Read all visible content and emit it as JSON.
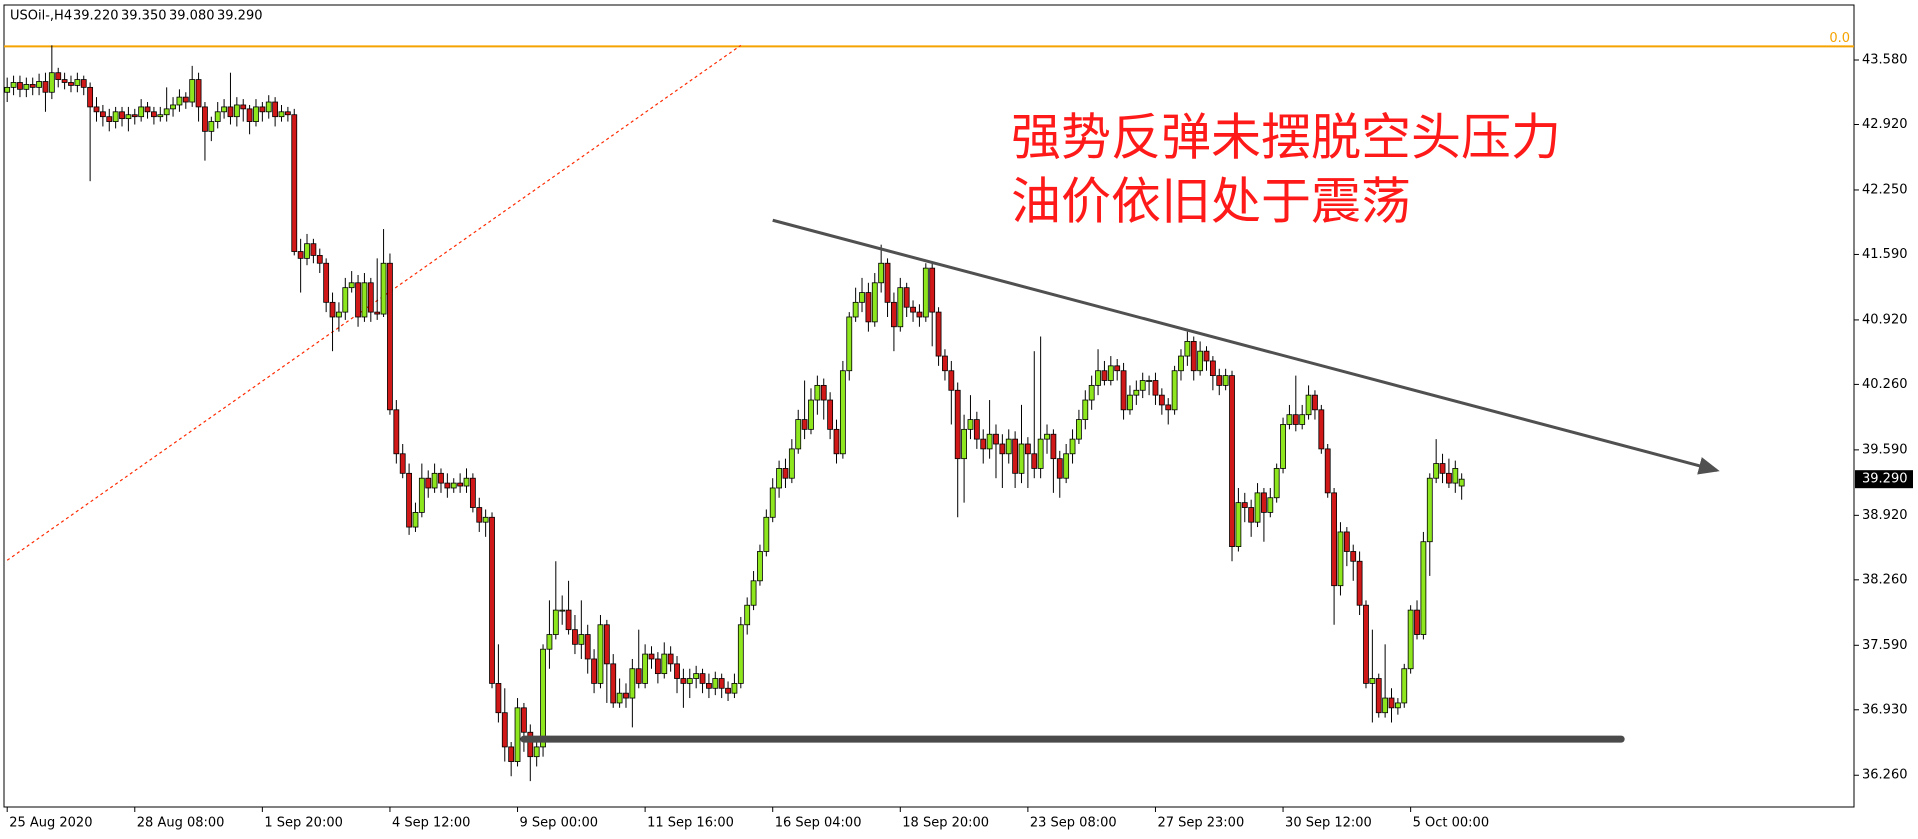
{
  "chart_data": {
    "type": "candlestick",
    "symbol": "USOil-,H4",
    "header_values": [
      "39.220",
      "39.350",
      "39.080",
      "39.290"
    ],
    "annotation": [
      "强势反弹未摆脱空头压力",
      "油价依旧处于震荡"
    ],
    "annotation_color": "#ff1a1a",
    "up_color": "#8ee61e",
    "down_color": "#d01818",
    "ylim": [
      35.935,
      44.143
    ],
    "yticks": [
      {
        "value": 43.58,
        "label": "43.580"
      },
      {
        "value": 42.92,
        "label": "42.920"
      },
      {
        "value": 42.25,
        "label": "42.250"
      },
      {
        "value": 41.59,
        "label": "41.590"
      },
      {
        "value": 40.92,
        "label": "40.920"
      },
      {
        "value": 40.26,
        "label": "40.260"
      },
      {
        "value": 39.59,
        "label": "39.590"
      },
      {
        "value": 38.92,
        "label": "38.920"
      },
      {
        "value": 38.26,
        "label": "38.260"
      },
      {
        "value": 37.59,
        "label": "37.590"
      },
      {
        "value": 36.93,
        "label": "36.930"
      },
      {
        "value": 36.26,
        "label": "36.260"
      }
    ],
    "xlim": [
      -0.5,
      289.5
    ],
    "xticks": [
      {
        "value": 0,
        "label": "25 Aug 2020"
      },
      {
        "value": 20,
        "label": "28 Aug 08:00"
      },
      {
        "value": 40,
        "label": "1 Sep 20:00"
      },
      {
        "value": 60,
        "label": "4 Sep 12:00"
      },
      {
        "value": 80,
        "label": "9 Sep 00:00"
      },
      {
        "value": 100,
        "label": "11 Sep 16:00"
      },
      {
        "value": 120,
        "label": "16 Sep 04:00"
      },
      {
        "value": 140,
        "label": "18 Sep 20:00"
      },
      {
        "value": 160,
        "label": "23 Sep 08:00"
      },
      {
        "value": 180,
        "label": "27 Sep 23:00"
      },
      {
        "value": 200,
        "label": "30 Sep 12:00"
      },
      {
        "value": 220,
        "label": "5 Oct 00:00"
      }
    ],
    "current_price": {
      "value": 39.29,
      "label": "39.290"
    },
    "fib_level": {
      "value": 43.72,
      "label": "0.0",
      "color": "#f5a300"
    },
    "fib_line": {
      "x": [
        0,
        115
      ],
      "y": [
        38.46,
        43.73
      ],
      "color": "#ff2a00"
    },
    "trendline": {
      "x": [
        120,
        268
      ],
      "y": [
        41.94,
        39.38
      ],
      "color": "#505050"
    },
    "support": {
      "x": [
        81,
        253
      ],
      "y": [
        36.63,
        36.63
      ],
      "color": "#4a4a4a"
    },
    "ohlc": [
      [
        43.25,
        43.4,
        43.15,
        43.3
      ],
      [
        43.3,
        43.42,
        43.22,
        43.35
      ],
      [
        43.35,
        43.42,
        43.2,
        43.28
      ],
      [
        43.28,
        43.4,
        43.2,
        43.33
      ],
      [
        43.33,
        43.4,
        43.22,
        43.3
      ],
      [
        43.3,
        43.44,
        43.22,
        43.36
      ],
      [
        43.36,
        43.45,
        43.05,
        43.25
      ],
      [
        43.25,
        43.73,
        43.18,
        43.45
      ],
      [
        43.45,
        43.5,
        43.3,
        43.38
      ],
      [
        43.38,
        43.45,
        43.28,
        43.35
      ],
      [
        43.35,
        43.42,
        43.25,
        43.32
      ],
      [
        43.32,
        43.45,
        43.25,
        43.38
      ],
      [
        43.38,
        43.42,
        43.22,
        43.3
      ],
      [
        43.3,
        43.35,
        42.34,
        43.1
      ],
      [
        43.1,
        43.2,
        42.95,
        43.05
      ],
      [
        43.05,
        43.12,
        42.9,
        43.0
      ],
      [
        43.0,
        43.08,
        42.85,
        42.95
      ],
      [
        42.95,
        43.1,
        42.88,
        43.05
      ],
      [
        43.05,
        43.1,
        42.9,
        42.98
      ],
      [
        42.98,
        43.1,
        42.85,
        43.02
      ],
      [
        43.02,
        43.08,
        42.92,
        43.0
      ],
      [
        43.0,
        43.18,
        42.95,
        43.1
      ],
      [
        43.1,
        43.15,
        42.98,
        43.05
      ],
      [
        43.05,
        43.1,
        42.92,
        43.0
      ],
      [
        43.0,
        43.1,
        42.95,
        43.02
      ],
      [
        43.02,
        43.3,
        42.95,
        43.08
      ],
      [
        43.08,
        43.2,
        43.0,
        43.12
      ],
      [
        43.12,
        43.28,
        43.05,
        43.2
      ],
      [
        43.2,
        43.25,
        43.08,
        43.15
      ],
      [
        43.15,
        43.52,
        43.1,
        43.38
      ],
      [
        43.38,
        43.45,
        42.95,
        43.1
      ],
      [
        43.1,
        43.15,
        42.55,
        42.85
      ],
      [
        42.85,
        43.0,
        42.75,
        42.95
      ],
      [
        42.95,
        43.15,
        42.88,
        43.05
      ],
      [
        43.05,
        43.18,
        42.98,
        43.1
      ],
      [
        43.1,
        43.45,
        42.92,
        43.0
      ],
      [
        43.0,
        43.2,
        42.9,
        43.12
      ],
      [
        43.12,
        43.18,
        42.95,
        43.08
      ],
      [
        43.08,
        43.12,
        42.82,
        42.95
      ],
      [
        42.95,
        43.18,
        42.9,
        43.1
      ],
      [
        43.1,
        43.15,
        42.95,
        43.05
      ],
      [
        43.05,
        43.22,
        42.98,
        43.15
      ],
      [
        43.15,
        43.2,
        42.9,
        43.0
      ],
      [
        43.0,
        43.12,
        42.95,
        43.05
      ],
      [
        43.05,
        43.1,
        42.95,
        43.02
      ],
      [
        43.02,
        43.08,
        41.58,
        41.62
      ],
      [
        41.62,
        41.75,
        41.2,
        41.55
      ],
      [
        41.55,
        41.8,
        41.48,
        41.7
      ],
      [
        41.7,
        41.75,
        41.5,
        41.58
      ],
      [
        41.58,
        41.65,
        41.4,
        41.5
      ],
      [
        41.5,
        41.55,
        41.0,
        41.1
      ],
      [
        41.1,
        41.2,
        40.6,
        40.95
      ],
      [
        40.95,
        41.1,
        40.8,
        41.0
      ],
      [
        41.0,
        41.35,
        40.92,
        41.25
      ],
      [
        41.25,
        41.42,
        41.2,
        41.3
      ],
      [
        41.3,
        41.38,
        40.85,
        40.95
      ],
      [
        40.95,
        41.4,
        40.9,
        41.3
      ],
      [
        41.3,
        41.35,
        40.9,
        41.0
      ],
      [
        41.0,
        41.55,
        40.92,
        40.98
      ],
      [
        40.98,
        41.85,
        40.95,
        41.5
      ],
      [
        41.5,
        41.6,
        39.95,
        40.0
      ],
      [
        40.0,
        40.1,
        39.45,
        39.55
      ],
      [
        39.55,
        39.65,
        39.3,
        39.35
      ],
      [
        39.35,
        39.45,
        38.72,
        38.8
      ],
      [
        38.8,
        39.05,
        38.75,
        38.95
      ],
      [
        38.95,
        39.45,
        38.9,
        39.3
      ],
      [
        39.3,
        39.38,
        39.1,
        39.2
      ],
      [
        39.2,
        39.45,
        39.15,
        39.35
      ],
      [
        39.35,
        39.4,
        39.15,
        39.25
      ],
      [
        39.25,
        39.35,
        39.1,
        39.2
      ],
      [
        39.2,
        39.3,
        39.15,
        39.25
      ],
      [
        39.25,
        39.35,
        39.15,
        39.22
      ],
      [
        39.22,
        39.4,
        39.15,
        39.3
      ],
      [
        39.3,
        39.35,
        38.95,
        39.0
      ],
      [
        39.0,
        39.1,
        38.75,
        38.85
      ],
      [
        38.85,
        38.98,
        38.7,
        38.9
      ],
      [
        38.9,
        38.95,
        37.15,
        37.2
      ],
      [
        37.2,
        37.6,
        36.8,
        36.9
      ],
      [
        36.9,
        37.15,
        36.4,
        36.55
      ],
      [
        36.55,
        36.6,
        36.25,
        36.4
      ],
      [
        36.4,
        37.05,
        36.35,
        36.95
      ],
      [
        36.95,
        37.0,
        36.5,
        36.7
      ],
      [
        36.7,
        36.78,
        36.2,
        36.45
      ],
      [
        36.45,
        36.62,
        36.35,
        36.55
      ],
      [
        36.55,
        37.6,
        36.45,
        37.55
      ],
      [
        37.55,
        38.05,
        37.35,
        37.7
      ],
      [
        37.7,
        38.45,
        37.65,
        37.95
      ],
      [
        37.95,
        38.1,
        37.8,
        37.95
      ],
      [
        37.95,
        38.25,
        37.7,
        37.75
      ],
      [
        37.75,
        37.9,
        37.5,
        37.6
      ],
      [
        37.6,
        38.05,
        37.45,
        37.7
      ],
      [
        37.7,
        37.8,
        37.3,
        37.45
      ],
      [
        37.45,
        37.55,
        37.1,
        37.2
      ],
      [
        37.2,
        37.9,
        37.15,
        37.8
      ],
      [
        37.8,
        37.85,
        37.0,
        37.4
      ],
      [
        37.4,
        37.5,
        36.95,
        37.0
      ],
      [
        37.0,
        37.25,
        36.95,
        37.1
      ],
      [
        37.1,
        37.2,
        36.95,
        37.05
      ],
      [
        37.05,
        37.45,
        36.75,
        37.35
      ],
      [
        37.35,
        37.75,
        37.15,
        37.2
      ],
      [
        37.2,
        37.6,
        37.15,
        37.5
      ],
      [
        37.5,
        37.58,
        37.35,
        37.45
      ],
      [
        37.45,
        37.52,
        37.2,
        37.3
      ],
      [
        37.3,
        37.62,
        37.25,
        37.5
      ],
      [
        37.5,
        37.58,
        37.32,
        37.4
      ],
      [
        37.4,
        37.48,
        37.1,
        37.25
      ],
      [
        37.25,
        37.35,
        36.95,
        37.2
      ],
      [
        37.2,
        37.35,
        37.05,
        37.25
      ],
      [
        37.25,
        37.38,
        37.15,
        37.3
      ],
      [
        37.3,
        37.35,
        37.1,
        37.2
      ],
      [
        37.2,
        37.3,
        37.05,
        37.15
      ],
      [
        37.15,
        37.32,
        37.08,
        37.25
      ],
      [
        37.25,
        37.3,
        37.05,
        37.15
      ],
      [
        37.15,
        37.22,
        37.02,
        37.1
      ],
      [
        37.1,
        37.3,
        37.05,
        37.2
      ],
      [
        37.2,
        37.88,
        37.15,
        37.8
      ],
      [
        37.8,
        38.08,
        37.7,
        38.0
      ],
      [
        38.0,
        38.35,
        37.95,
        38.25
      ],
      [
        38.25,
        38.62,
        38.2,
        38.55
      ],
      [
        38.55,
        38.98,
        38.5,
        38.9
      ],
      [
        38.9,
        39.3,
        38.85,
        39.2
      ],
      [
        39.2,
        39.48,
        39.1,
        39.4
      ],
      [
        39.4,
        39.5,
        39.2,
        39.3
      ],
      [
        39.3,
        39.7,
        39.25,
        39.6
      ],
      [
        39.6,
        40.0,
        39.55,
        39.9
      ],
      [
        39.9,
        40.3,
        39.7,
        39.8
      ],
      [
        39.8,
        40.22,
        39.75,
        40.1
      ],
      [
        40.1,
        40.35,
        39.95,
        40.25
      ],
      [
        40.25,
        40.32,
        39.9,
        40.1
      ],
      [
        40.1,
        40.18,
        39.7,
        39.8
      ],
      [
        39.8,
        39.9,
        39.45,
        39.55
      ],
      [
        39.55,
        40.5,
        39.5,
        40.4
      ],
      [
        40.4,
        41.0,
        40.3,
        40.95
      ],
      [
        40.95,
        41.25,
        40.9,
        41.1
      ],
      [
        41.1,
        41.35,
        41.0,
        41.2
      ],
      [
        41.2,
        41.3,
        40.8,
        40.9
      ],
      [
        40.9,
        41.4,
        40.85,
        41.3
      ],
      [
        41.3,
        41.69,
        41.2,
        41.5
      ],
      [
        41.5,
        41.55,
        40.95,
        41.1
      ],
      [
        41.1,
        41.2,
        40.6,
        40.85
      ],
      [
        40.85,
        41.35,
        40.8,
        41.25
      ],
      [
        41.25,
        41.3,
        40.95,
        41.05
      ],
      [
        41.05,
        41.12,
        40.9,
        41.0
      ],
      [
        41.0,
        41.08,
        40.85,
        40.95
      ],
      [
        40.95,
        41.5,
        40.9,
        41.45
      ],
      [
        41.45,
        41.52,
        40.65,
        41.0
      ],
      [
        41.0,
        41.05,
        40.45,
        40.55
      ],
      [
        40.55,
        40.62,
        40.3,
        40.4
      ],
      [
        40.4,
        40.5,
        39.85,
        40.2
      ],
      [
        40.2,
        40.28,
        38.9,
        39.5
      ],
      [
        39.5,
        39.95,
        39.05,
        39.8
      ],
      [
        39.8,
        40.15,
        39.7,
        39.9
      ],
      [
        39.9,
        39.98,
        39.6,
        39.7
      ],
      [
        39.7,
        39.8,
        39.45,
        39.6
      ],
      [
        39.6,
        40.1,
        39.5,
        39.75
      ],
      [
        39.75,
        39.85,
        39.3,
        39.65
      ],
      [
        39.65,
        39.75,
        39.2,
        39.55
      ],
      [
        39.55,
        39.8,
        39.45,
        39.7
      ],
      [
        39.7,
        39.78,
        39.2,
        39.35
      ],
      [
        39.35,
        40.05,
        39.25,
        39.65
      ],
      [
        39.65,
        39.72,
        39.2,
        39.55
      ],
      [
        39.55,
        40.6,
        39.3,
        39.4
      ],
      [
        39.4,
        40.75,
        39.3,
        39.7
      ],
      [
        39.7,
        39.85,
        39.55,
        39.75
      ],
      [
        39.75,
        39.8,
        39.15,
        39.5
      ],
      [
        39.5,
        39.58,
        39.1,
        39.3
      ],
      [
        39.3,
        39.65,
        39.25,
        39.55
      ],
      [
        39.55,
        39.8,
        39.45,
        39.7
      ],
      [
        39.7,
        40.0,
        39.65,
        39.9
      ],
      [
        39.9,
        40.2,
        39.8,
        40.1
      ],
      [
        40.1,
        40.35,
        40.0,
        40.25
      ],
      [
        40.25,
        40.62,
        40.15,
        40.4
      ],
      [
        40.4,
        40.5,
        40.25,
        40.3
      ],
      [
        40.3,
        40.55,
        40.25,
        40.45
      ],
      [
        40.45,
        40.52,
        40.3,
        40.4
      ],
      [
        40.4,
        40.48,
        39.9,
        40.0
      ],
      [
        40.0,
        40.25,
        39.95,
        40.15
      ],
      [
        40.15,
        40.3,
        40.05,
        40.2
      ],
      [
        40.2,
        40.38,
        40.12,
        40.3
      ],
      [
        40.3,
        40.35,
        40.15,
        40.3
      ],
      [
        40.3,
        40.38,
        40.05,
        40.15
      ],
      [
        40.15,
        40.22,
        39.95,
        40.05
      ],
      [
        40.05,
        40.12,
        39.85,
        40.0
      ],
      [
        40.0,
        40.45,
        39.95,
        40.4
      ],
      [
        40.4,
        40.62,
        40.3,
        40.55
      ],
      [
        40.55,
        40.8,
        40.45,
        40.7
      ],
      [
        40.7,
        40.75,
        40.3,
        40.4
      ],
      [
        40.4,
        40.7,
        40.35,
        40.6
      ],
      [
        40.6,
        40.65,
        40.4,
        40.5
      ],
      [
        40.5,
        40.55,
        40.2,
        40.35
      ],
      [
        40.35,
        40.42,
        40.15,
        40.25
      ],
      [
        40.25,
        40.42,
        40.2,
        40.35
      ],
      [
        40.35,
        40.4,
        38.45,
        38.6
      ],
      [
        38.6,
        39.2,
        38.55,
        39.05
      ],
      [
        39.05,
        39.15,
        38.85,
        39.0
      ],
      [
        39.0,
        39.08,
        38.7,
        38.85
      ],
      [
        38.85,
        39.25,
        38.8,
        39.15
      ],
      [
        39.15,
        39.2,
        38.65,
        38.95
      ],
      [
        38.95,
        39.2,
        38.9,
        39.1
      ],
      [
        39.1,
        39.45,
        39.05,
        39.4
      ],
      [
        39.4,
        39.92,
        39.35,
        39.85
      ],
      [
        39.85,
        40.05,
        39.8,
        39.95
      ],
      [
        39.95,
        40.35,
        39.78,
        39.85
      ],
      [
        39.85,
        40.05,
        39.8,
        39.95
      ],
      [
        39.95,
        40.25,
        39.9,
        40.15
      ],
      [
        40.15,
        40.2,
        39.9,
        40.0
      ],
      [
        40.0,
        40.05,
        39.55,
        39.6
      ],
      [
        39.6,
        39.65,
        39.1,
        39.15
      ],
      [
        39.15,
        39.2,
        37.8,
        38.2
      ],
      [
        38.2,
        38.85,
        38.1,
        38.75
      ],
      [
        38.75,
        38.8,
        38.4,
        38.55
      ],
      [
        38.55,
        38.62,
        38.25,
        38.45
      ],
      [
        38.45,
        38.55,
        37.9,
        38.0
      ],
      [
        38.0,
        38.05,
        37.15,
        37.2
      ],
      [
        37.2,
        37.75,
        36.8,
        37.25
      ],
      [
        37.25,
        37.3,
        36.85,
        36.9
      ],
      [
        36.9,
        37.6,
        36.85,
        37.05
      ],
      [
        37.05,
        37.15,
        36.8,
        36.95
      ],
      [
        36.95,
        37.05,
        36.88,
        37.0
      ],
      [
        37.0,
        37.4,
        36.95,
        37.35
      ],
      [
        37.35,
        38.0,
        37.3,
        37.95
      ],
      [
        37.95,
        38.05,
        37.65,
        37.7
      ],
      [
        37.7,
        38.75,
        37.65,
        38.65
      ],
      [
        38.65,
        39.35,
        38.3,
        39.3
      ],
      [
        39.3,
        39.7,
        39.25,
        39.45
      ],
      [
        39.45,
        39.55,
        39.25,
        39.35
      ],
      [
        39.35,
        39.5,
        39.2,
        39.25
      ],
      [
        39.25,
        39.48,
        39.15,
        39.4
      ],
      [
        39.22,
        39.35,
        39.08,
        39.29
      ]
    ]
  }
}
